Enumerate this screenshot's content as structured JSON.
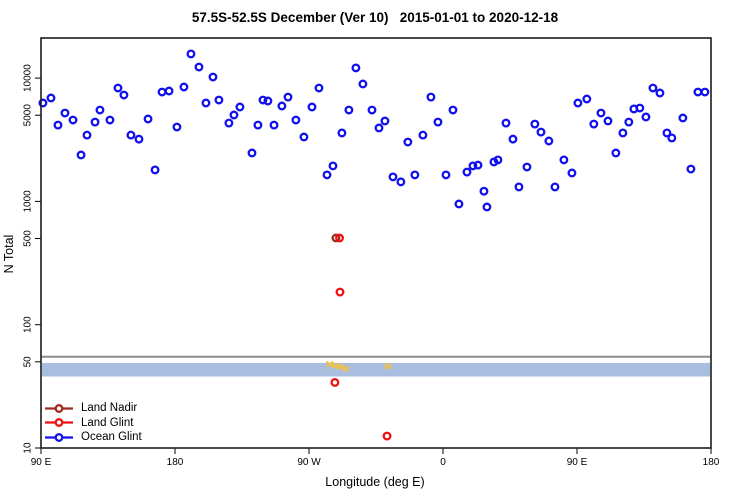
{
  "chart": {
    "title": "57.5S-52.5S December (Ver 10)   2015-01-01 to 2020-12-18",
    "xlabel": "Longitude (deg E)",
    "ylabel": "N Total"
  },
  "legend": {
    "items": [
      {
        "label": "Land Nadir",
        "color": "#9e2b22"
      },
      {
        "label": "Land Glint",
        "color": "#ee1111"
      },
      {
        "label": "Ocean Glint",
        "color": "#1111ee"
      }
    ]
  },
  "chart_data": {
    "type": "scatter",
    "title": "57.5S-52.5S December (Ver 10)   2015-01-01 to 2020-12-18",
    "xlabel": "Longitude (deg E)",
    "ylabel": "N Total",
    "y_scale": "log",
    "ylim": [
      9,
      20000
    ],
    "grid": false,
    "legend_position": "bottom-left",
    "x_axis_note": "axis spans 450 deg starting at 90E and wrapping: 90E,180,90W,0,90E,180; x values below are degrees east of the left edge (90E)",
    "x_span_deg": 450,
    "x_ticks": [
      {
        "pos": 0,
        "label": "90 E"
      },
      {
        "pos": 90,
        "label": "180"
      },
      {
        "pos": 180,
        "label": "90 W"
      },
      {
        "pos": 270,
        "label": "0"
      },
      {
        "pos": 360,
        "label": "90 E"
      },
      {
        "pos": 450,
        "label": "180"
      }
    ],
    "y_ticks": [
      {
        "value": 10,
        "label": "10"
      },
      {
        "value": 50,
        "label": "50"
      },
      {
        "value": 100,
        "label": "100"
      },
      {
        "value": 500,
        "label": "500"
      },
      {
        "value": 1000,
        "label": "1000"
      },
      {
        "value": 5000,
        "label": "5000"
      },
      {
        "value": 10000,
        "label": "10000"
      }
    ],
    "hline": {
      "value": 55,
      "color": "#8c8c8c"
    },
    "band": {
      "value_top": 49,
      "value_bottom": 38,
      "color": "#a9bdde"
    },
    "extra_marks": {
      "name": "yellow-scribble-marks",
      "color": "#edc24e",
      "points": [
        [
          194,
          48
        ],
        [
          197.5,
          46.5
        ],
        [
          201,
          45.5
        ],
        [
          204.5,
          44
        ],
        [
          233,
          46
        ]
      ]
    },
    "series": [
      {
        "name": "Land Nadir",
        "color": "#9e2b22",
        "points": [
          [
            198.1,
            505
          ]
        ]
      },
      {
        "name": "Land Glint",
        "color": "#ee1111",
        "points": [
          [
            200.5,
            505
          ],
          [
            200.8,
            184
          ],
          [
            197.4,
            34
          ],
          [
            232.4,
            12.5
          ]
        ]
      },
      {
        "name": "Ocean Glint",
        "color": "#1111ee",
        "points": [
          [
            1.3,
            6280
          ],
          [
            6.7,
            6900
          ],
          [
            11.4,
            4160
          ],
          [
            16.1,
            5210
          ],
          [
            21.5,
            4570
          ],
          [
            26.9,
            2380
          ],
          [
            30.9,
            3450
          ],
          [
            36.3,
            4400
          ],
          [
            39.6,
            5510
          ],
          [
            46.3,
            4570
          ],
          [
            51.7,
            8310
          ],
          [
            55.7,
            7290
          ],
          [
            60.4,
            3450
          ],
          [
            65.8,
            3200
          ],
          [
            71.9,
            4660
          ],
          [
            76.6,
            1800
          ],
          [
            81.3,
            7710
          ],
          [
            86.0,
            7860
          ],
          [
            91.3,
            4010
          ],
          [
            96.0,
            8470
          ],
          [
            100.7,
            15700
          ],
          [
            106.1,
            12300
          ],
          [
            110.8,
            6280
          ],
          [
            115.5,
            10200
          ],
          [
            119.5,
            6640
          ],
          [
            126.2,
            4320
          ],
          [
            129.6,
            5020
          ],
          [
            133.6,
            5830
          ],
          [
            141.7,
            2470
          ],
          [
            145.7,
            4160
          ],
          [
            149.1,
            6640
          ],
          [
            152.4,
            6520
          ],
          [
            156.5,
            4160
          ],
          [
            161.8,
            5940
          ],
          [
            165.9,
            7020
          ],
          [
            171.2,
            4570
          ],
          [
            176.6,
            3330
          ],
          [
            182.0,
            5830
          ],
          [
            186.7,
            8310
          ],
          [
            192.1,
            1640
          ],
          [
            196.1,
            1940
          ],
          [
            202.1,
            3590
          ],
          [
            206.8,
            5510
          ],
          [
            211.5,
            12100
          ],
          [
            216.2,
            8960
          ],
          [
            222.3,
            5510
          ],
          [
            227.0,
            3940
          ],
          [
            231.0,
            4490
          ],
          [
            236.4,
            1580
          ],
          [
            241.7,
            1440
          ],
          [
            246.4,
            3030
          ],
          [
            251.1,
            1640
          ],
          [
            256.5,
            3450
          ],
          [
            261.9,
            7020
          ],
          [
            266.6,
            4400
          ],
          [
            272.0,
            1640
          ],
          [
            276.7,
            5510
          ],
          [
            280.7,
            953
          ],
          [
            286.1,
            1730
          ],
          [
            290.1,
            1940
          ],
          [
            293.5,
            1970
          ],
          [
            297.5,
            1210
          ],
          [
            299.5,
            901
          ],
          [
            304.2,
            2090
          ],
          [
            306.9,
            2170
          ],
          [
            312.3,
            4320
          ],
          [
            317.0,
            3200
          ],
          [
            321.0,
            1310
          ],
          [
            326.4,
            1900
          ],
          [
            331.7,
            4240
          ],
          [
            335.8,
            3650
          ],
          [
            341.1,
            3090
          ],
          [
            345.2,
            1310
          ],
          [
            351.2,
            2170
          ],
          [
            356.6,
            1700
          ],
          [
            360.6,
            6280
          ],
          [
            366.6,
            6770
          ],
          [
            371.3,
            4240
          ],
          [
            376.1,
            5210
          ],
          [
            380.8,
            4490
          ],
          [
            386.1,
            2470
          ],
          [
            390.8,
            3590
          ],
          [
            394.8,
            4400
          ],
          [
            398.2,
            5620
          ],
          [
            402.2,
            5720
          ],
          [
            406.3,
            4840
          ],
          [
            411.0,
            8310
          ],
          [
            415.7,
            7570
          ],
          [
            420.4,
            3590
          ],
          [
            423.7,
            3270
          ],
          [
            431.1,
            4750
          ],
          [
            436.5,
            1830
          ],
          [
            441.2,
            7710
          ],
          [
            445.9,
            7710
          ]
        ]
      }
    ]
  }
}
